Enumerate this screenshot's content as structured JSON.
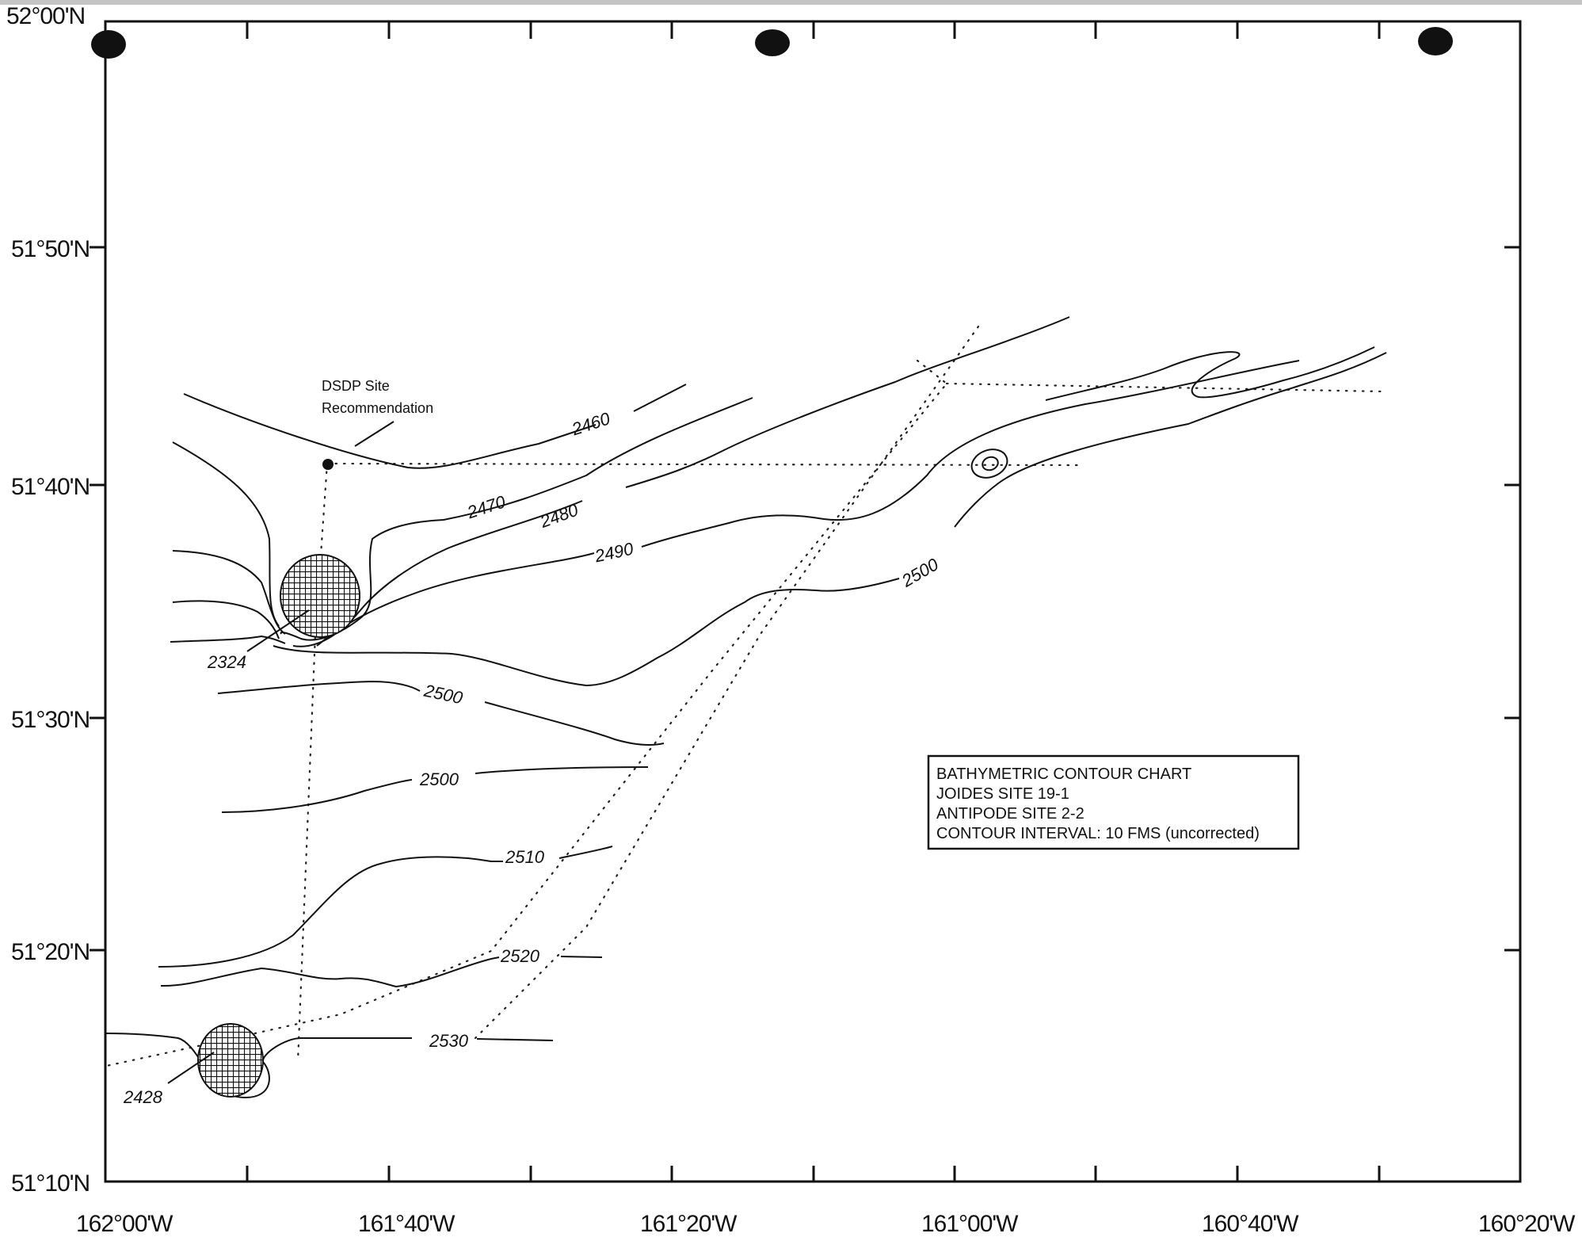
{
  "map": {
    "lat_labels": [
      "52°00'N",
      "51°50'N",
      "51°40'N",
      "51°30'N",
      "51°20'N",
      "51°10'N"
    ],
    "lon_labels": [
      "162°00'W",
      "161°40'W",
      "161°20'W",
      "161°00'W",
      "160°40'W",
      "160°20'W"
    ],
    "contour_labels": [
      "2460",
      "2470",
      "2480",
      "2490",
      "2500",
      "2500",
      "2500",
      "2510",
      "2520",
      "2530"
    ],
    "peak_labels": [
      "2324",
      "2428"
    ],
    "site_note": [
      "DSDP Site",
      "Recommendation"
    ],
    "legend": [
      "BATHYMETRIC CONTOUR CHART",
      "JOIDES SITE 19-1",
      "ANTIPODE SITE 2-2",
      "CONTOUR INTERVAL: 10 FMS (uncorrected)"
    ],
    "colors": {
      "ink": "#111111",
      "paper": "#ffffff"
    }
  }
}
